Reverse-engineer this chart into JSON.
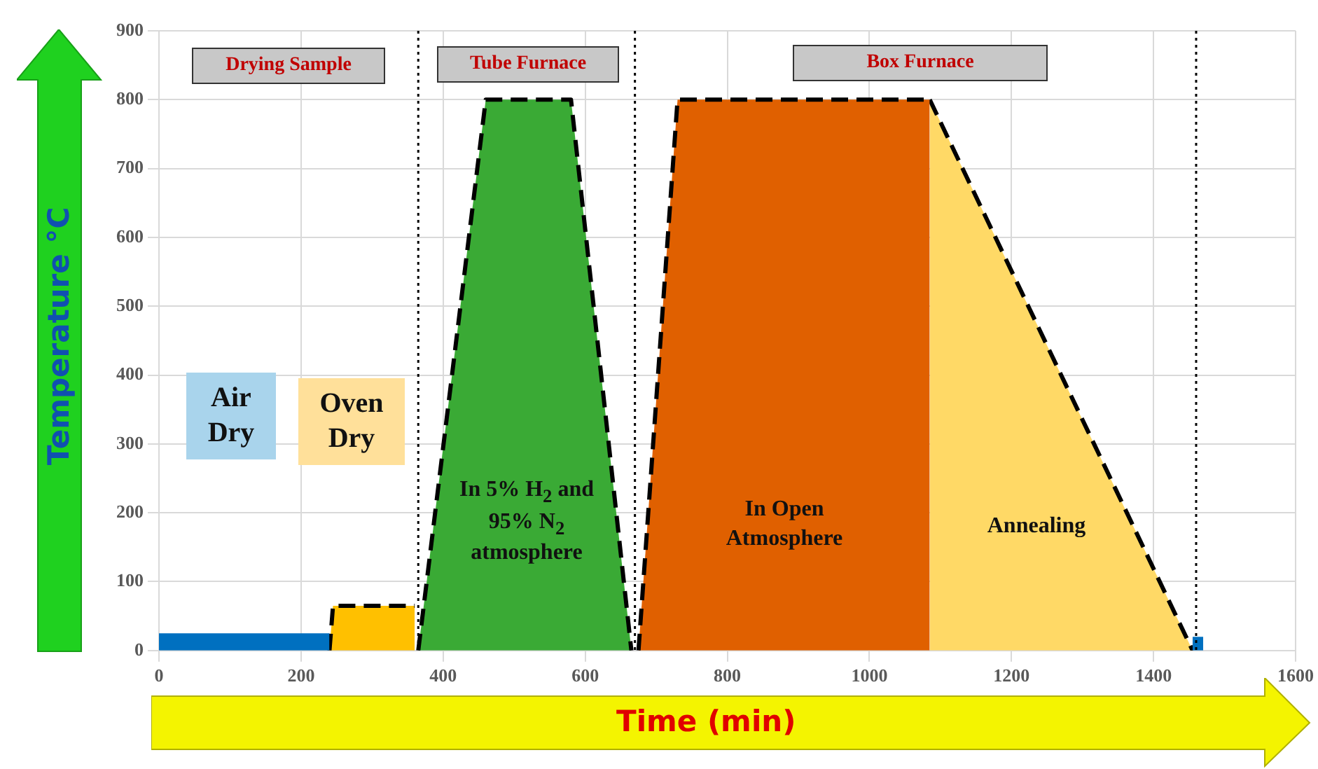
{
  "chart_data": {
    "type": "area",
    "xlabel": "Time (min)",
    "ylabel": "Temperature °C",
    "xlim": [
      0,
      1600
    ],
    "xticks": [
      0,
      200,
      400,
      600,
      800,
      1000,
      1200,
      1400,
      1600
    ],
    "ylim": [
      0,
      900
    ],
    "yticks": [
      0,
      100,
      200,
      300,
      400,
      500,
      600,
      700,
      800,
      900
    ],
    "grid": true,
    "legend": false,
    "marker": "none",
    "series": [
      {
        "color": "#0070c0",
        "x": [
          0,
          240,
          245,
          1455,
          1470
        ],
        "values": [
          25,
          25,
          null,
          20,
          20
        ]
      },
      {
        "color": "#ffc000",
        "line_style": "dashed",
        "x": [
          240,
          245,
          360
        ],
        "values": [
          0,
          65,
          65
        ]
      },
      {
        "color": "#3aaa35",
        "line_style": "dashed",
        "x": [
          365,
          460,
          580,
          665
        ],
        "values": [
          0,
          800,
          800,
          0
        ]
      },
      {
        "color": "#e06000",
        "line_style": "dashed",
        "x": [
          675,
          730,
          1085
        ],
        "values": [
          0,
          800,
          800
        ]
      },
      {
        "color": "#ffd966",
        "line_style": "dashed",
        "x": [
          1085,
          1455
        ],
        "values": [
          800,
          0
        ]
      }
    ],
    "ref_lines": [
      {
        "axis": "x",
        "value": 365,
        "line_style": "dotted"
      },
      {
        "axis": "x",
        "value": 670,
        "line_style": "dotted"
      },
      {
        "axis": "x",
        "value": 1460,
        "line_style": "dotted"
      }
    ],
    "annotations": [
      "Drying Sample",
      "Tube Furnace",
      "Box Furnace",
      "Air Dry",
      "Oven Dry",
      "In 5% H$_{2}$ and 95% N$_{2}$ atmosphere",
      "In Open Atmosphere",
      "Annealing"
    ]
  }
}
